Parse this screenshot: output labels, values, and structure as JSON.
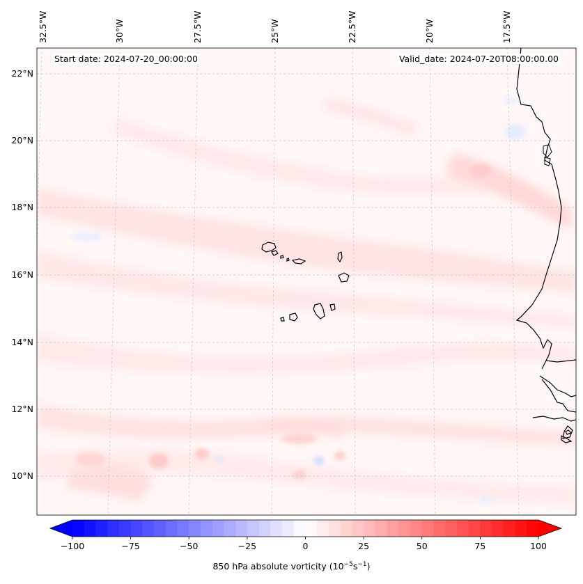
{
  "map": {
    "start_date_label": "Start date: 2024-07-20_00:00:00",
    "valid_date_label": "Valid_date: 2024-07-20T08:00:00.00",
    "lon_labels": [
      "32.5°W",
      "30°W",
      "27.5°W",
      "25°W",
      "22.5°W",
      "20°W",
      "17.5°W"
    ],
    "lat_labels": [
      "22°N",
      "20°N",
      "18°N",
      "16°N",
      "14°N",
      "12°N",
      "10°N"
    ],
    "features": [
      "Cape Verde islands",
      "West African coastline"
    ]
  },
  "colorbar": {
    "ticks": [
      "−100",
      "−75",
      "−50",
      "−25",
      "0",
      "25",
      "50",
      "75",
      "100"
    ],
    "tick_values": [
      -100,
      -75,
      -50,
      -25,
      0,
      25,
      50,
      75,
      100
    ],
    "range": [
      -100,
      100
    ],
    "label_prefix": "850 hPa absolute vorticity (10",
    "label_exp1": "−5",
    "label_mid": "s",
    "label_exp2": "−1",
    "label_suffix": ")",
    "low_color": "#0000ff",
    "mid_color": "#ffffff",
    "high_color": "#ff0000"
  }
}
